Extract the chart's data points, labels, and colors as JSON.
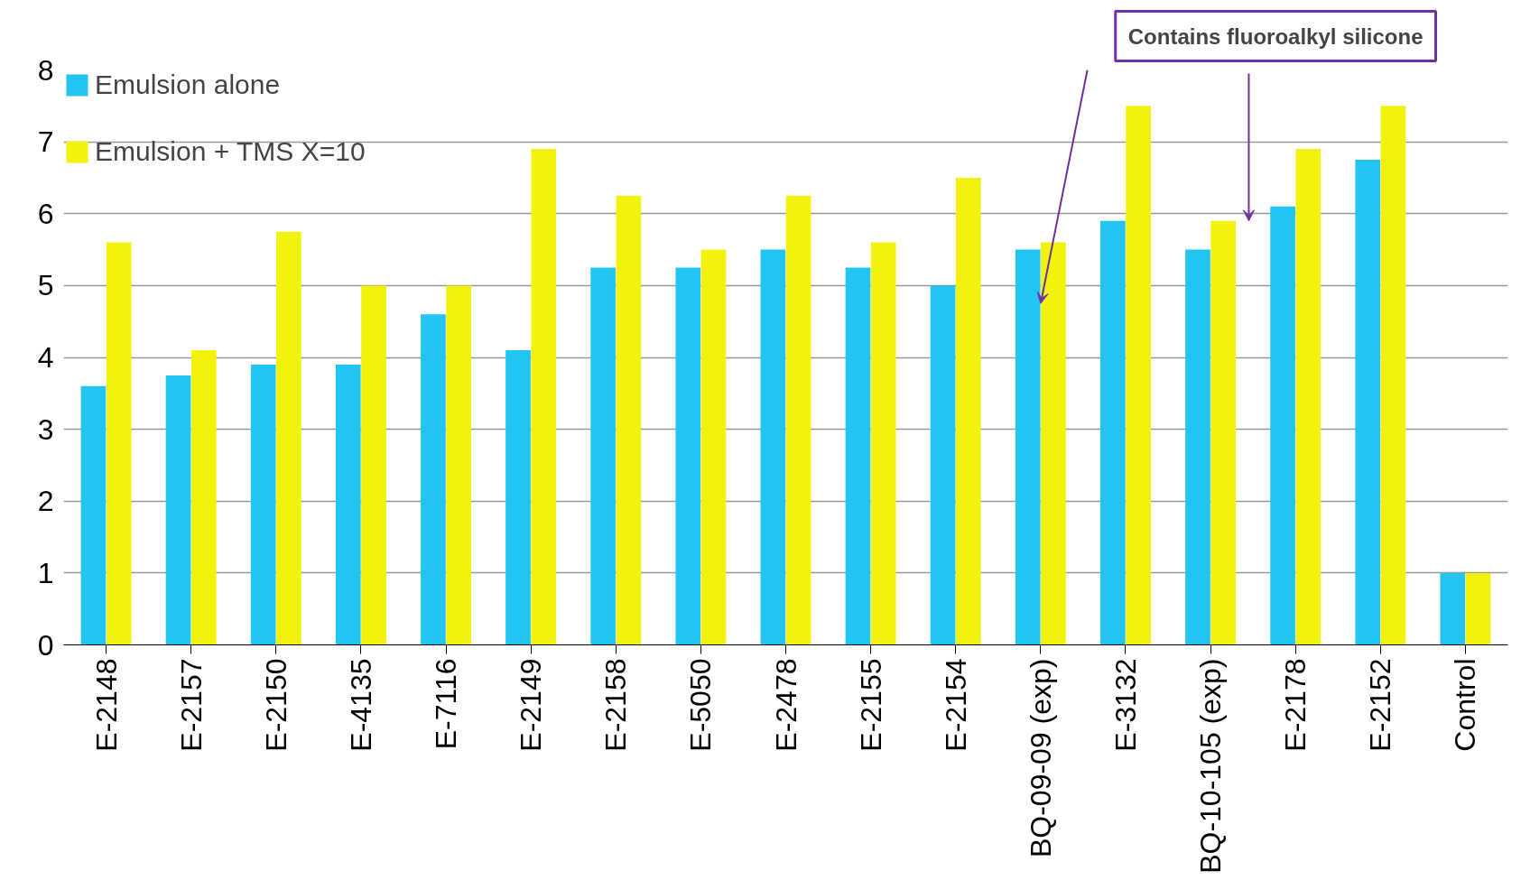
{
  "chart_data": {
    "type": "bar",
    "categories": [
      "E-2148",
      "E-2157",
      "E-2150",
      "E-4135",
      "E-7116",
      "E-2149",
      "E-2158",
      "E-5050",
      "E-2478",
      "E-2155",
      "E-2154",
      "BQ-09-09 (exp)",
      "E-3132",
      "BQ-10-105 (exp)",
      "E-2178",
      "E-2152",
      "Control"
    ],
    "series": [
      {
        "name": "Emulsion alone",
        "color": "#22c4f2",
        "values": [
          3.6,
          3.75,
          3.9,
          3.9,
          4.6,
          4.1,
          5.25,
          5.25,
          5.5,
          5.25,
          5,
          5.5,
          5.9,
          5.5,
          6.1,
          6.75,
          1
        ]
      },
      {
        "name": "Emulsion + TMS X=10",
        "color": "#f2f20c",
        "values": [
          5.6,
          4.1,
          5.75,
          5,
          5,
          6.9,
          6.25,
          5.5,
          6.25,
          5.6,
          6.5,
          5.6,
          7.5,
          5.9,
          6.9,
          7.5,
          1
        ]
      }
    ],
    "ylim": [
      0,
      8
    ],
    "yticks": [
      0,
      1,
      2,
      3,
      4,
      5,
      6,
      7,
      8
    ],
    "grid": "y",
    "legend": "top left",
    "annotations": [
      "Contains fluoroalkyl silicone"
    ]
  }
}
